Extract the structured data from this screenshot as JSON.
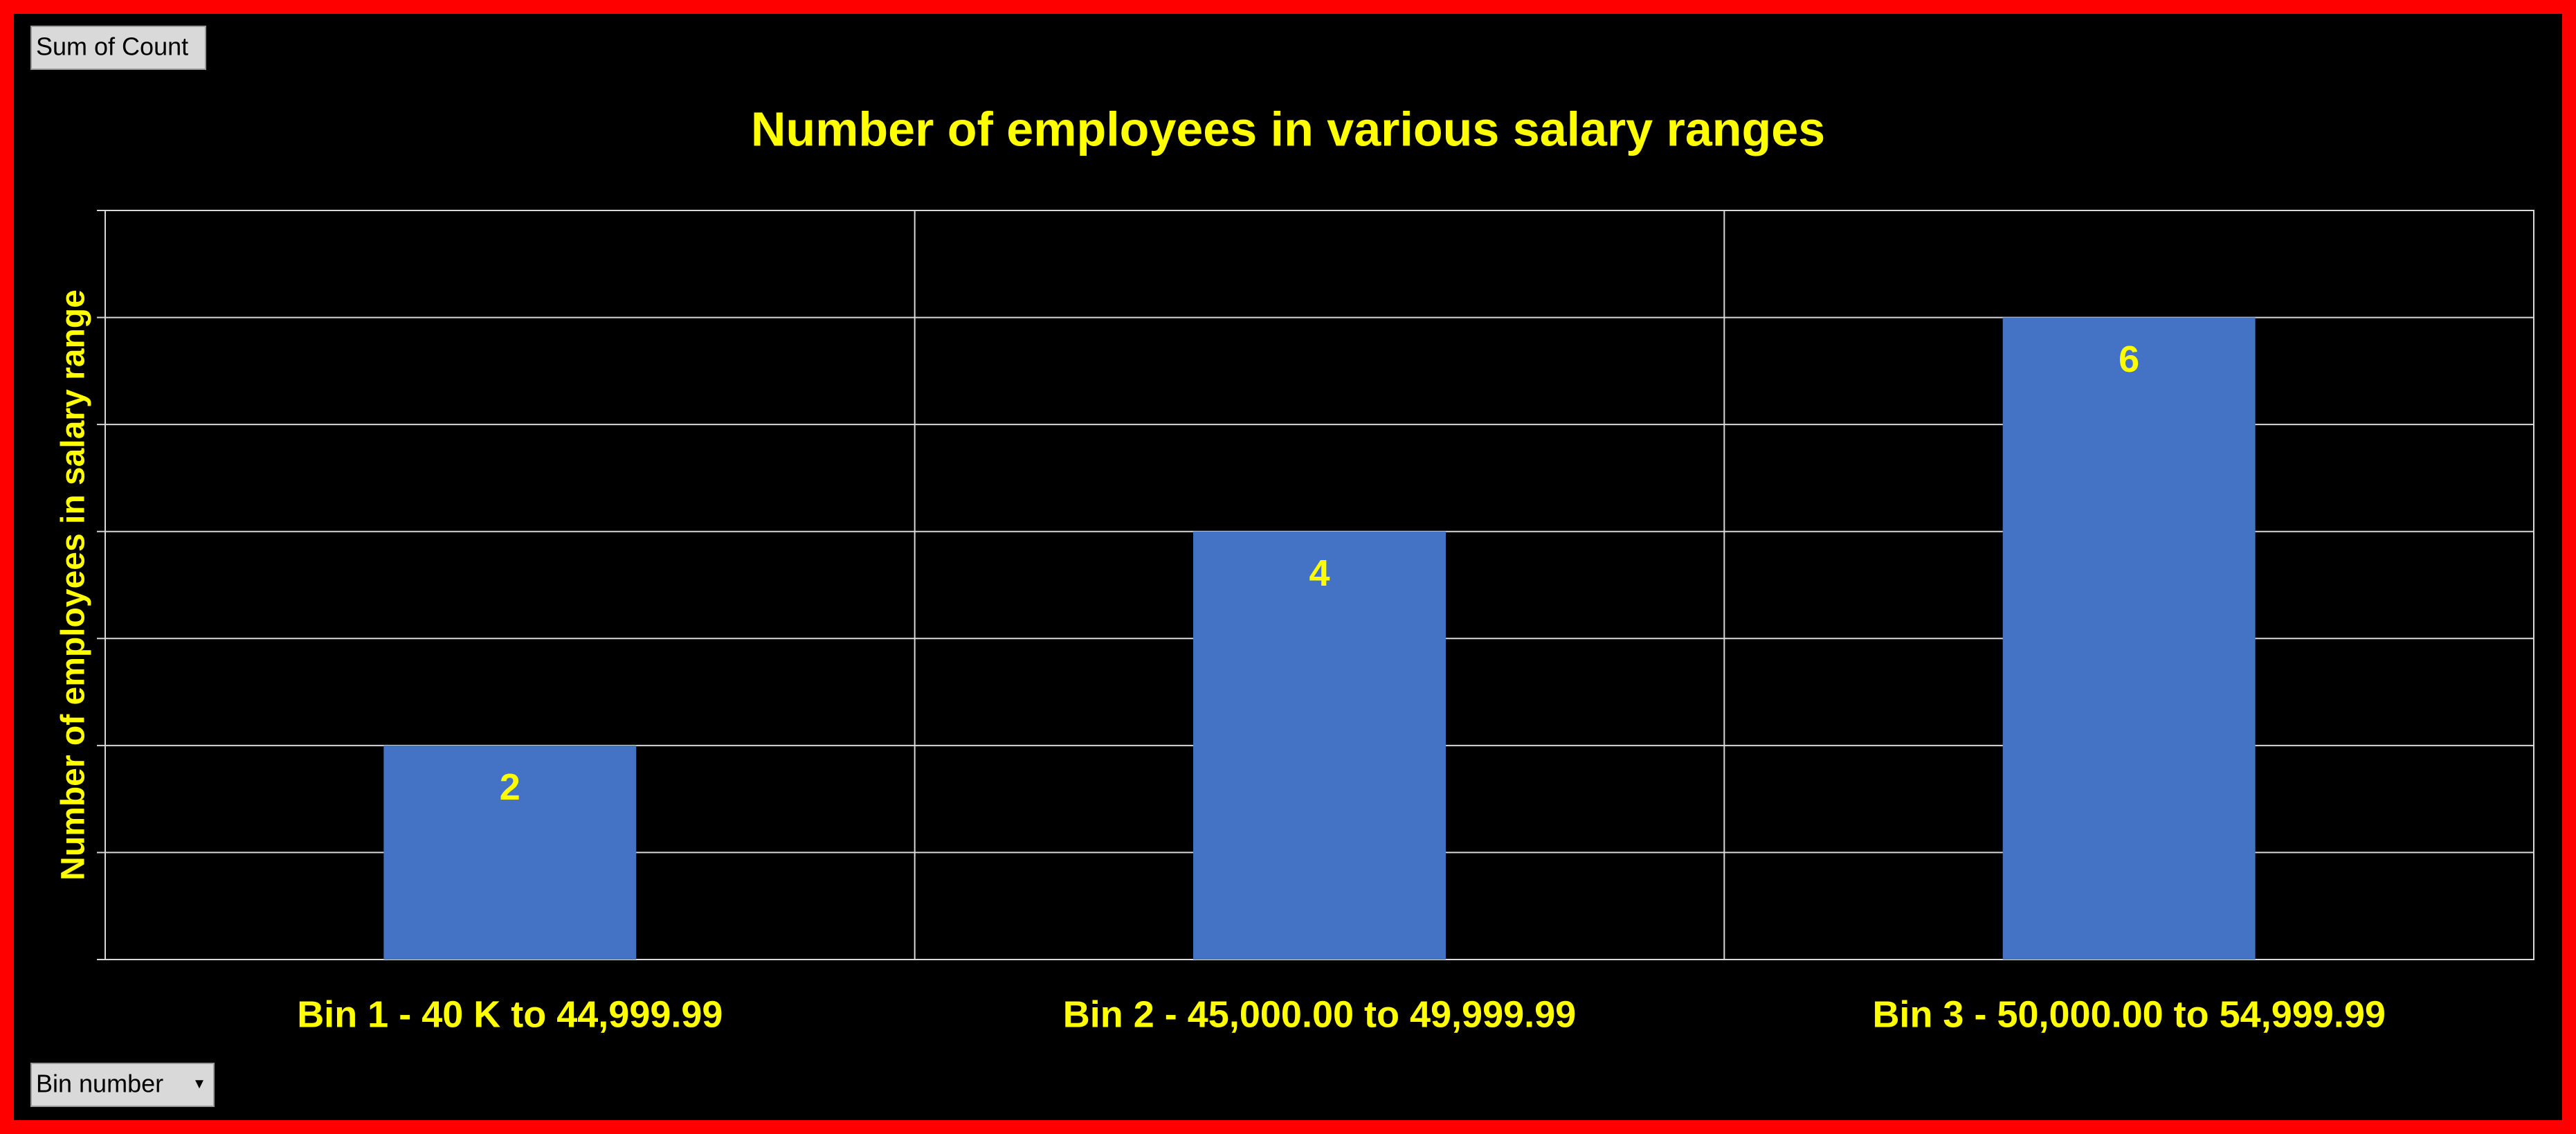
{
  "value_field_button": "Sum of Count",
  "axis_field_button": "Bin number",
  "chart_data": {
    "type": "bar",
    "title": "Number of employees in various salary ranges",
    "y_label": "Number of employees in salary range",
    "categories": [
      "Bin 1 - 40 K to 44,999.99",
      "Bin 2 - 45,000.00 to 49,999.99",
      "Bin 3 - 50,000.00 to 54,999.99"
    ],
    "values": [
      2,
      4,
      6
    ],
    "color": "#4472c4",
    "ylim": [
      0,
      7
    ],
    "yticks": [
      0,
      1,
      2,
      3,
      4,
      5,
      6,
      7
    ],
    "grid": true
  }
}
